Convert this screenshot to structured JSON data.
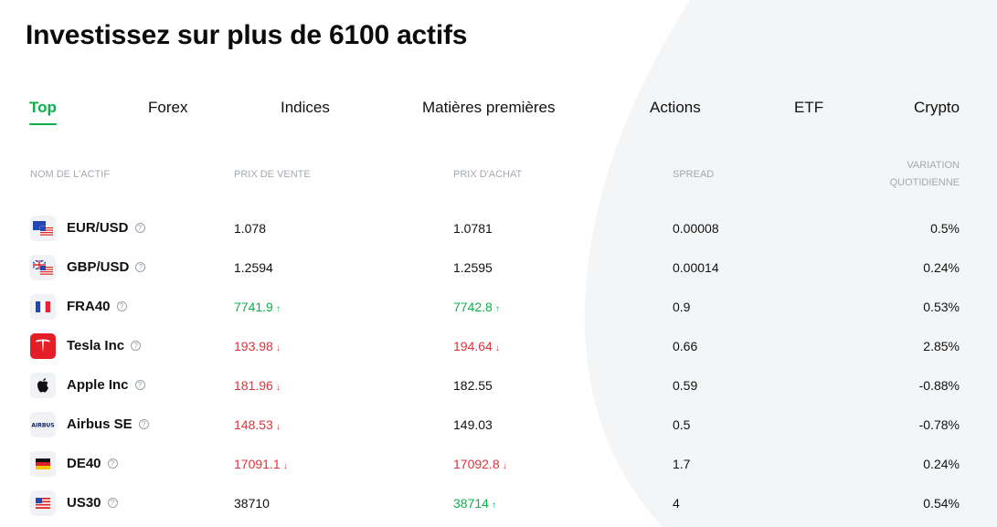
{
  "header": {
    "title": "Investissez sur plus de 6100 actifs"
  },
  "tabs": [
    {
      "label": "Top"
    },
    {
      "label": "Forex"
    },
    {
      "label": "Indices"
    },
    {
      "label": "Matières premières"
    },
    {
      "label": "Actions"
    },
    {
      "label": "ETF"
    },
    {
      "label": "Crypto"
    }
  ],
  "table": {
    "headers": {
      "asset": "NOM DE L'ACTIF",
      "sell": "PRIX DE VENTE",
      "buy": "PRIX D'ACHAT",
      "spread": "SPREAD",
      "variation_line1": "VARIATION",
      "variation_line2": "QUOTIDIENNE"
    },
    "rows": [
      {
        "asset": "EUR/USD",
        "icon": "eu-us-flag-icon",
        "sell": "1.078",
        "sell_trend": "",
        "buy": "1.0781",
        "buy_trend": "",
        "spread": "0.00008",
        "variation": "0.5%"
      },
      {
        "asset": "GBP/USD",
        "icon": "uk-us-flag-icon",
        "sell": "1.2594",
        "sell_trend": "",
        "buy": "1.2595",
        "buy_trend": "",
        "spread": "0.00014",
        "variation": "0.24%"
      },
      {
        "asset": "FRA40",
        "icon": "france-flag-icon",
        "sell": "7741.9",
        "sell_trend": "up",
        "buy": "7742.8",
        "buy_trend": "up",
        "spread": "0.9",
        "variation": "0.53%"
      },
      {
        "asset": "Tesla Inc",
        "icon": "tesla-logo-icon",
        "sell": "193.98",
        "sell_trend": "down",
        "buy": "194.64",
        "buy_trend": "down",
        "spread": "0.66",
        "variation": "2.85%"
      },
      {
        "asset": "Apple Inc",
        "icon": "apple-logo-icon",
        "sell": "181.96",
        "sell_trend": "down",
        "buy": "182.55",
        "buy_trend": "",
        "spread": "0.59",
        "variation": "-0.88%"
      },
      {
        "asset": "Airbus SE",
        "icon": "airbus-logo-icon",
        "sell": "148.53",
        "sell_trend": "down",
        "buy": "149.03",
        "buy_trend": "",
        "spread": "0.5",
        "variation": "-0.78%"
      },
      {
        "asset": "DE40",
        "icon": "germany-flag-icon",
        "sell": "17091.1",
        "sell_trend": "down",
        "buy": "17092.8",
        "buy_trend": "down",
        "spread": "1.7",
        "variation": "0.24%"
      },
      {
        "asset": "US30",
        "icon": "us-flag-icon",
        "sell": "38710",
        "sell_trend": "",
        "buy": "38714",
        "buy_trend": "up",
        "spread": "4",
        "variation": "0.54%"
      }
    ]
  },
  "colors": {
    "accent": "#0bb04b",
    "up": "#0bb04b",
    "down": "#e0323a",
    "header_text": "#a3a9b0"
  },
  "icons": {
    "info": "info-icon",
    "arrow_up": "arrow-up-icon",
    "arrow_down": "arrow-down-icon"
  }
}
